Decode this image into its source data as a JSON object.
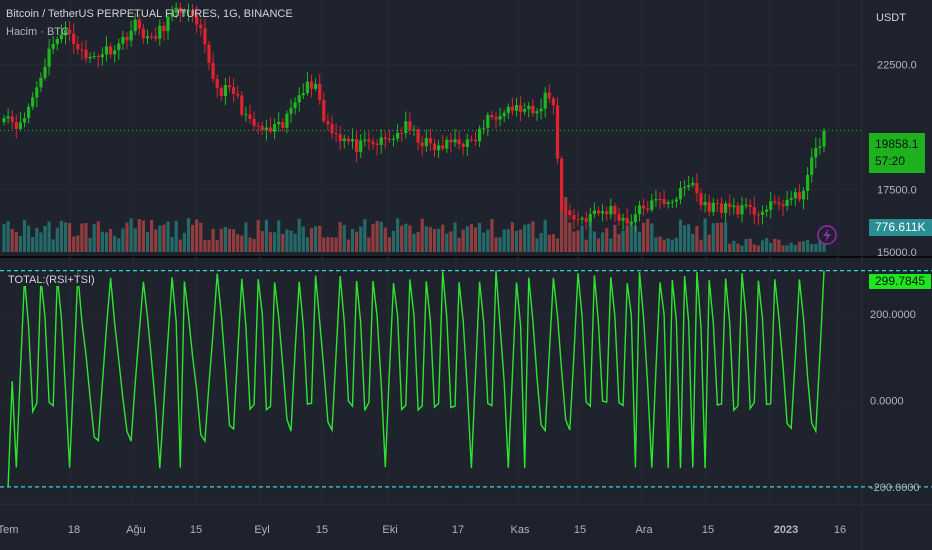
{
  "header": {
    "title": "Bitcoin / TetherUS PERPETUAL FUTURES, 1G, BINANCE",
    "volume_label": "Hacim · BTC",
    "oscillator_label": "TOTAL:(RSI+TSI)"
  },
  "price_axis": {
    "unit": "USDT",
    "ticks": [
      "22500.0",
      "17500.0",
      "15000.0"
    ],
    "last_price": "19858.1",
    "countdown": "57:20",
    "volume_value": "776.611K"
  },
  "oscillator_axis": {
    "ticks": [
      "200.0000",
      "0.0000",
      "-200.0000"
    ],
    "last_value": "299.7845"
  },
  "time_axis": [
    "Tem",
    "18",
    "Ağu",
    "15",
    "Eyl",
    "15",
    "Eki",
    "17",
    "Kas",
    "15",
    "Ara",
    "15",
    "2023",
    "16"
  ],
  "colors": {
    "up": "#26a69a",
    "down": "#ef5350",
    "candle_up": "#1eb81e",
    "candle_down": "#e0232e",
    "osc": "#2ee52e",
    "band": "#33d6e6",
    "bg": "#1e222d"
  },
  "chart_data": [
    {
      "type": "candlestick",
      "title": "Bitcoin / TetherUS PERPETUAL FUTURES, 1G, BINANCE",
      "ylabel": "USDT",
      "ylim": [
        15000,
        25000
      ],
      "close_anchors": [
        [
          0,
          20600
        ],
        [
          4,
          20000
        ],
        [
          8,
          21600
        ],
        [
          12,
          23500
        ],
        [
          16,
          23800
        ],
        [
          20,
          22700
        ],
        [
          24,
          23000
        ],
        [
          28,
          23300
        ],
        [
          32,
          24100
        ],
        [
          36,
          23400
        ],
        [
          40,
          24300
        ],
        [
          44,
          24800
        ],
        [
          48,
          23700
        ],
        [
          52,
          21500
        ],
        [
          56,
          21400
        ],
        [
          60,
          20100
        ],
        [
          64,
          19800
        ],
        [
          68,
          20000
        ],
        [
          72,
          21500
        ],
        [
          76,
          21800
        ],
        [
          78,
          20300
        ],
        [
          82,
          19600
        ],
        [
          86,
          19200
        ],
        [
          90,
          19300
        ],
        [
          94,
          19500
        ],
        [
          98,
          20000
        ],
        [
          102,
          19400
        ],
        [
          106,
          19100
        ],
        [
          110,
          19500
        ],
        [
          114,
          19300
        ],
        [
          118,
          20300
        ],
        [
          122,
          20800
        ],
        [
          126,
          20700
        ],
        [
          130,
          20500
        ],
        [
          132,
          21300
        ],
        [
          134,
          21000
        ],
        [
          136,
          16700
        ],
        [
          140,
          16300
        ],
        [
          144,
          16500
        ],
        [
          148,
          16700
        ],
        [
          152,
          16200
        ],
        [
          156,
          16800
        ],
        [
          160,
          17000
        ],
        [
          164,
          17200
        ],
        [
          168,
          17800
        ],
        [
          170,
          16900
        ],
        [
          174,
          16800
        ],
        [
          178,
          16800
        ],
        [
          182,
          16600
        ],
        [
          186,
          16700
        ],
        [
          190,
          17000
        ],
        [
          194,
          17200
        ],
        [
          198,
          19000
        ],
        [
          200,
          19858
        ]
      ]
    },
    {
      "type": "bar",
      "title": "Hacim · BTC",
      "last_value": "776.611K"
    },
    {
      "type": "line",
      "title": "TOTAL:(RSI+TSI)",
      "ylim": [
        -235,
        320
      ],
      "reference_lines": [
        300,
        -200
      ],
      "peaks_x": [
        5,
        9,
        13,
        18,
        26,
        34,
        41,
        44,
        52,
        58,
        62,
        66,
        72,
        76,
        82,
        86,
        90,
        95,
        99,
        103,
        107,
        111,
        116,
        120,
        125,
        128,
        134,
        140,
        144,
        148,
        152,
        155,
        160,
        163,
        166,
        169,
        172,
        176,
        180,
        184,
        188,
        194,
        200
      ],
      "last_value": 299.7845
    }
  ]
}
